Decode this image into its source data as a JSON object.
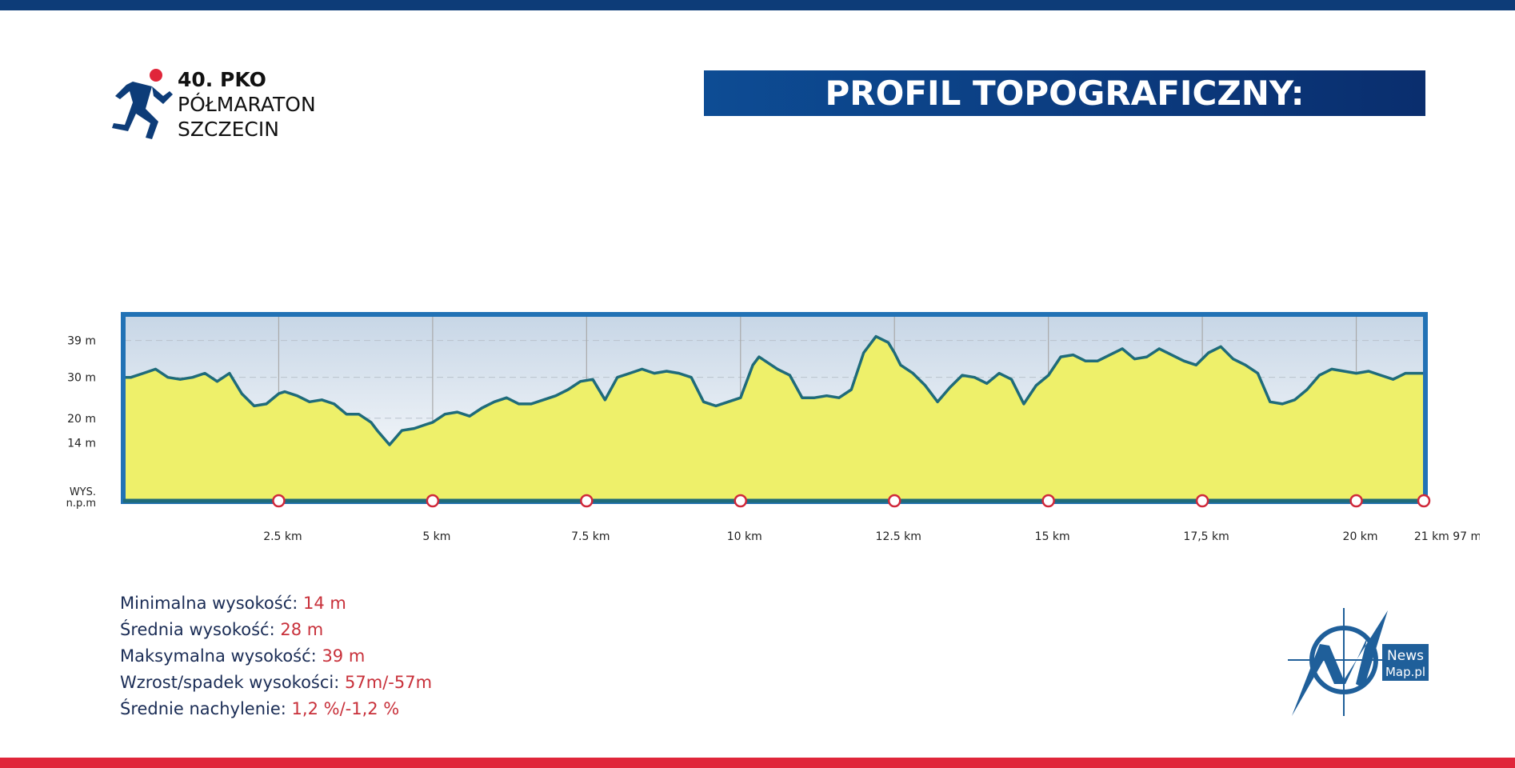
{
  "header": {
    "logo_line1": "40. PKO",
    "logo_line2": "PÓŁMARATON",
    "logo_line3": "SZCZECIN",
    "title_bold": "PROFIL TOPOGRAFICZNY:",
    "title_regular": "PÓŁMARATON",
    "brand_blue": "#0d3c78",
    "brand_red": "#e0263a"
  },
  "chart_data": {
    "type": "area",
    "title": "",
    "xlabel": "",
    "ylabel": "WYS. n.p.m",
    "ylim": [
      0,
      45
    ],
    "xlim": [
      0,
      21.097
    ],
    "ytick_labels": [
      "39 m",
      "30 m",
      "20 m",
      "14 m"
    ],
    "ytick_values": [
      39,
      30,
      20,
      14
    ],
    "xtick_labels": [
      "2.5 km",
      "5 km",
      "7.5 km",
      "10 km",
      "12.5 km",
      "15 km",
      "17,5 km",
      "20 km",
      "21 km 97 m"
    ],
    "xtick_values": [
      2.5,
      5,
      7.5,
      10,
      12.5,
      15,
      17.5,
      20,
      21.097
    ],
    "grid": true,
    "fill_color": "#eef06a",
    "line_color": "#1f6b7a",
    "frame_color": "#2272b5",
    "marker_color": "#d0283a",
    "series": [
      {
        "x": [
          0,
          0.1,
          0.3,
          0.5,
          0.7,
          0.9,
          1.1,
          1.3,
          1.5,
          1.7,
          1.9,
          2.1,
          2.3,
          2.5,
          2.6,
          2.8,
          3.0,
          3.2,
          3.4,
          3.6,
          3.8,
          4.0,
          4.1,
          4.3,
          4.5,
          4.7,
          4.9,
          5.0,
          5.2,
          5.4,
          5.6,
          5.8,
          6.0,
          6.2,
          6.4,
          6.6,
          6.8,
          7.0,
          7.2,
          7.4,
          7.6,
          7.8,
          8.0,
          8.2,
          8.4,
          8.6,
          8.8,
          9.0,
          9.2,
          9.4,
          9.6,
          9.8,
          10.0,
          10.2,
          10.3,
          10.4,
          10.6,
          10.8,
          11.0,
          11.2,
          11.4,
          11.6,
          11.8,
          12.0,
          12.2,
          12.4,
          12.5,
          12.6,
          12.8,
          13.0,
          13.2,
          13.4,
          13.6,
          13.8,
          14.0,
          14.2,
          14.4,
          14.6,
          14.8,
          15.0,
          15.2,
          15.4,
          15.6,
          15.8,
          16.0,
          16.2,
          16.4,
          16.6,
          16.8,
          17.0,
          17.2,
          17.4,
          17.6,
          17.8,
          18.0,
          18.2,
          18.4,
          18.6,
          18.8,
          19.0,
          19.2,
          19.4,
          19.6,
          19.8,
          20.0,
          20.2,
          20.4,
          20.6,
          20.8,
          21.0,
          21.097
        ],
        "y": [
          30,
          30,
          31,
          32,
          30,
          29.5,
          30,
          31,
          29,
          31,
          26,
          23,
          23.5,
          26,
          26.5,
          25.5,
          24,
          24.5,
          23.5,
          21,
          21,
          19,
          17,
          13.5,
          17,
          17.5,
          18.5,
          19,
          21,
          21.5,
          20.5,
          22.5,
          24,
          25,
          23.5,
          23.5,
          24.5,
          25.5,
          27,
          29,
          29.5,
          24.5,
          30,
          31,
          32,
          31,
          31.5,
          31,
          30,
          24,
          23,
          24,
          25,
          33,
          35,
          34,
          32,
          30.5,
          25,
          25,
          25.5,
          25,
          27,
          36,
          40,
          38.5,
          36,
          33,
          31,
          28,
          24,
          27.5,
          30.5,
          30,
          28.5,
          31,
          29.5,
          23.5,
          28,
          30.5,
          35,
          35.5,
          34,
          34,
          35.5,
          37,
          34.5,
          35,
          37,
          35.5,
          34,
          33,
          36,
          37.5,
          34.5,
          33,
          31,
          24,
          23.5,
          24.5,
          27,
          30.5,
          32,
          31.5,
          31,
          31.5,
          30.5,
          29.5,
          31,
          31,
          31
        ]
      }
    ]
  },
  "stats": [
    {
      "label": "Minimalna wysokość:",
      "value": "14 m"
    },
    {
      "label": "Średnia wysokość:",
      "value": "28 m"
    },
    {
      "label": "Maksymalna wysokość:",
      "value": "39 m"
    },
    {
      "label": "Wzrost/spadek wysokości:",
      "value": "57m/-57m"
    },
    {
      "label": "Średnie nachylenie:",
      "value": "1,2 %/-1,2 %"
    }
  ],
  "newsmap": {
    "line1": "News",
    "line2": "Map.pl",
    "color": "#1f5f9a"
  }
}
